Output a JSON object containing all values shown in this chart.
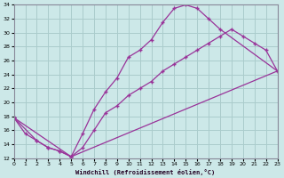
{
  "xlabel": "Windchill (Refroidissement éolien,°C)",
  "bg_color": "#cce8e8",
  "grid_color": "#aacccc",
  "line_color": "#993399",
  "xlim": [
    0,
    23
  ],
  "ylim": [
    12,
    34
  ],
  "xticks": [
    0,
    1,
    2,
    3,
    4,
    5,
    6,
    7,
    8,
    9,
    10,
    11,
    12,
    13,
    14,
    15,
    16,
    17,
    18,
    19,
    20,
    21,
    22,
    23
  ],
  "yticks": [
    12,
    14,
    16,
    18,
    20,
    22,
    24,
    26,
    28,
    30,
    32,
    34
  ],
  "line1_x": [
    0,
    1,
    2,
    3,
    4,
    5,
    6,
    7,
    8,
    9,
    10,
    11,
    12,
    13,
    14,
    15,
    16,
    17,
    18,
    23
  ],
  "line1_y": [
    17.8,
    15.5,
    14.5,
    13.5,
    13.0,
    12.2,
    15.5,
    19.0,
    21.5,
    23.5,
    26.5,
    27.5,
    29.0,
    31.5,
    33.5,
    34.0,
    33.5,
    32.0,
    30.5,
    24.5
  ],
  "line2_x": [
    0,
    2,
    3,
    4,
    5,
    6,
    7,
    8,
    9,
    10,
    11,
    12,
    13,
    14,
    15,
    16,
    17,
    18,
    19,
    20,
    21,
    22,
    23
  ],
  "line2_y": [
    17.8,
    14.5,
    13.5,
    13.0,
    12.2,
    13.5,
    16.0,
    18.5,
    19.5,
    21.0,
    22.0,
    23.0,
    24.5,
    25.5,
    26.5,
    27.5,
    28.5,
    29.5,
    30.5,
    29.5,
    28.5,
    27.5,
    24.5
  ],
  "line3_x": [
    0,
    5,
    23
  ],
  "line3_y": [
    17.8,
    12.2,
    24.5
  ]
}
